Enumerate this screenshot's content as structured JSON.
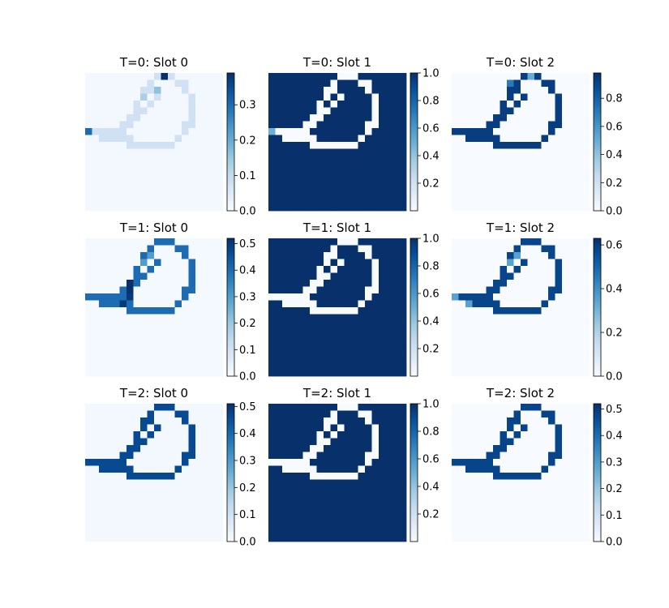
{
  "figure": {
    "colormap": "Blues",
    "colors": {
      "low": "#f7fbff",
      "high": "#08306b",
      "frame": "#000000"
    }
  },
  "chart_data": [
    {
      "type": "heatmap",
      "title": "T=0: Slot 0",
      "grid": false,
      "clim": [
        0,
        0.39
      ],
      "colorbar_ticks": [
        "0.0",
        "0.1",
        "0.2",
        "0.3"
      ],
      "colorbar_tick_values": [
        0,
        0.1,
        0.2,
        0.3
      ],
      "background_value": 0.01,
      "pattern_value": 0.08,
      "pattern": "outline",
      "highlights": [
        {
          "row": 0,
          "col": 11,
          "value": 0.39
        },
        {
          "row": 2,
          "col": 10,
          "value": 0.16
        },
        {
          "row": 3,
          "col": 8,
          "value": 0.13
        },
        {
          "row": 8,
          "col": 0,
          "value": 0.3
        }
      ]
    },
    {
      "type": "heatmap",
      "title": "T=0: Slot 1",
      "grid": false,
      "clim": [
        0,
        1
      ],
      "colorbar_ticks": [
        "0.2",
        "0.4",
        "0.6",
        "0.8",
        "1.0"
      ],
      "colorbar_tick_values": [
        0.2,
        0.4,
        0.6,
        0.8,
        1.0
      ],
      "background_value": 1.0,
      "pattern_value": 0.0,
      "pattern": "outline",
      "highlights": [
        {
          "row": 8,
          "col": 0,
          "value": 0.5
        }
      ]
    },
    {
      "type": "heatmap",
      "title": "T=0: Slot 2",
      "grid": false,
      "clim": [
        0,
        0.98
      ],
      "colorbar_ticks": [
        "0.0",
        "0.2",
        "0.4",
        "0.6",
        "0.8"
      ],
      "colorbar_tick_values": [
        0,
        0.2,
        0.4,
        0.6,
        0.8
      ],
      "background_value": 0.0,
      "pattern_value": 0.93,
      "pattern": "outline",
      "highlights": [
        {
          "row": 0,
          "col": 11,
          "value": 0.5
        },
        {
          "row": 1,
          "col": 8,
          "value": 0.7
        }
      ]
    },
    {
      "type": "heatmap",
      "title": "T=1: Slot 0",
      "grid": false,
      "clim": [
        0,
        0.52
      ],
      "colorbar_ticks": [
        "0.0",
        "0.1",
        "0.2",
        "0.3",
        "0.4",
        "0.5"
      ],
      "colorbar_tick_values": [
        0,
        0.1,
        0.2,
        0.3,
        0.4,
        0.5
      ],
      "background_value": 0.01,
      "pattern_value": 0.4,
      "pattern": "outline",
      "highlights": [
        {
          "row": 2,
          "col": 9,
          "value": 0.3
        },
        {
          "row": 3,
          "col": 8,
          "value": 0.3
        },
        {
          "row": 6,
          "col": 6,
          "value": 0.52
        },
        {
          "row": 7,
          "col": 6,
          "value": 0.52
        },
        {
          "row": 8,
          "col": 6,
          "value": 0.5
        },
        {
          "row": 9,
          "col": 5,
          "value": 0.5
        }
      ]
    },
    {
      "type": "heatmap",
      "title": "T=1: Slot 1",
      "grid": false,
      "clim": [
        0,
        1
      ],
      "colorbar_ticks": [
        "0.2",
        "0.4",
        "0.6",
        "0.8",
        "1.0"
      ],
      "colorbar_tick_values": [
        0.2,
        0.4,
        0.6,
        0.8,
        1.0
      ],
      "background_value": 1.0,
      "pattern_value": 0.0,
      "pattern": "outline",
      "highlights": []
    },
    {
      "type": "heatmap",
      "title": "T=1: Slot 2",
      "grid": false,
      "clim": [
        0,
        0.63
      ],
      "colorbar_ticks": [
        "0.0",
        "0.2",
        "0.4",
        "0.6"
      ],
      "colorbar_tick_values": [
        0,
        0.2,
        0.4,
        0.6
      ],
      "background_value": 0.0,
      "pattern_value": 0.58,
      "pattern": "outline",
      "highlights": [
        {
          "row": 2,
          "col": 9,
          "value": 0.35
        },
        {
          "row": 3,
          "col": 8,
          "value": 0.35
        },
        {
          "row": 8,
          "col": 0,
          "value": 0.35
        },
        {
          "row": 9,
          "col": 2,
          "value": 0.35
        }
      ]
    },
    {
      "type": "heatmap",
      "title": "T=2: Slot 0",
      "grid": false,
      "clim": [
        0,
        0.51
      ],
      "colorbar_ticks": [
        "0.0",
        "0.1",
        "0.2",
        "0.3",
        "0.4",
        "0.5"
      ],
      "colorbar_tick_values": [
        0,
        0.1,
        0.2,
        0.3,
        0.4,
        0.5
      ],
      "background_value": 0.01,
      "pattern_value": 0.46,
      "pattern": "outline",
      "highlights": []
    },
    {
      "type": "heatmap",
      "title": "T=2: Slot 1",
      "grid": false,
      "clim": [
        0,
        1
      ],
      "colorbar_ticks": [
        "0.2",
        "0.4",
        "0.6",
        "0.8",
        "1.0"
      ],
      "colorbar_tick_values": [
        0.2,
        0.4,
        0.6,
        0.8,
        1.0
      ],
      "background_value": 1.0,
      "pattern_value": 0.0,
      "pattern": "outline",
      "highlights": []
    },
    {
      "type": "heatmap",
      "title": "T=2: Slot 2",
      "grid": false,
      "clim": [
        0,
        0.52
      ],
      "colorbar_ticks": [
        "0.0",
        "0.1",
        "0.2",
        "0.3",
        "0.4",
        "0.5"
      ],
      "colorbar_tick_values": [
        0,
        0.1,
        0.2,
        0.3,
        0.4,
        0.5
      ],
      "background_value": 0.0,
      "pattern_value": 0.48,
      "pattern": "outline",
      "highlights": []
    }
  ]
}
